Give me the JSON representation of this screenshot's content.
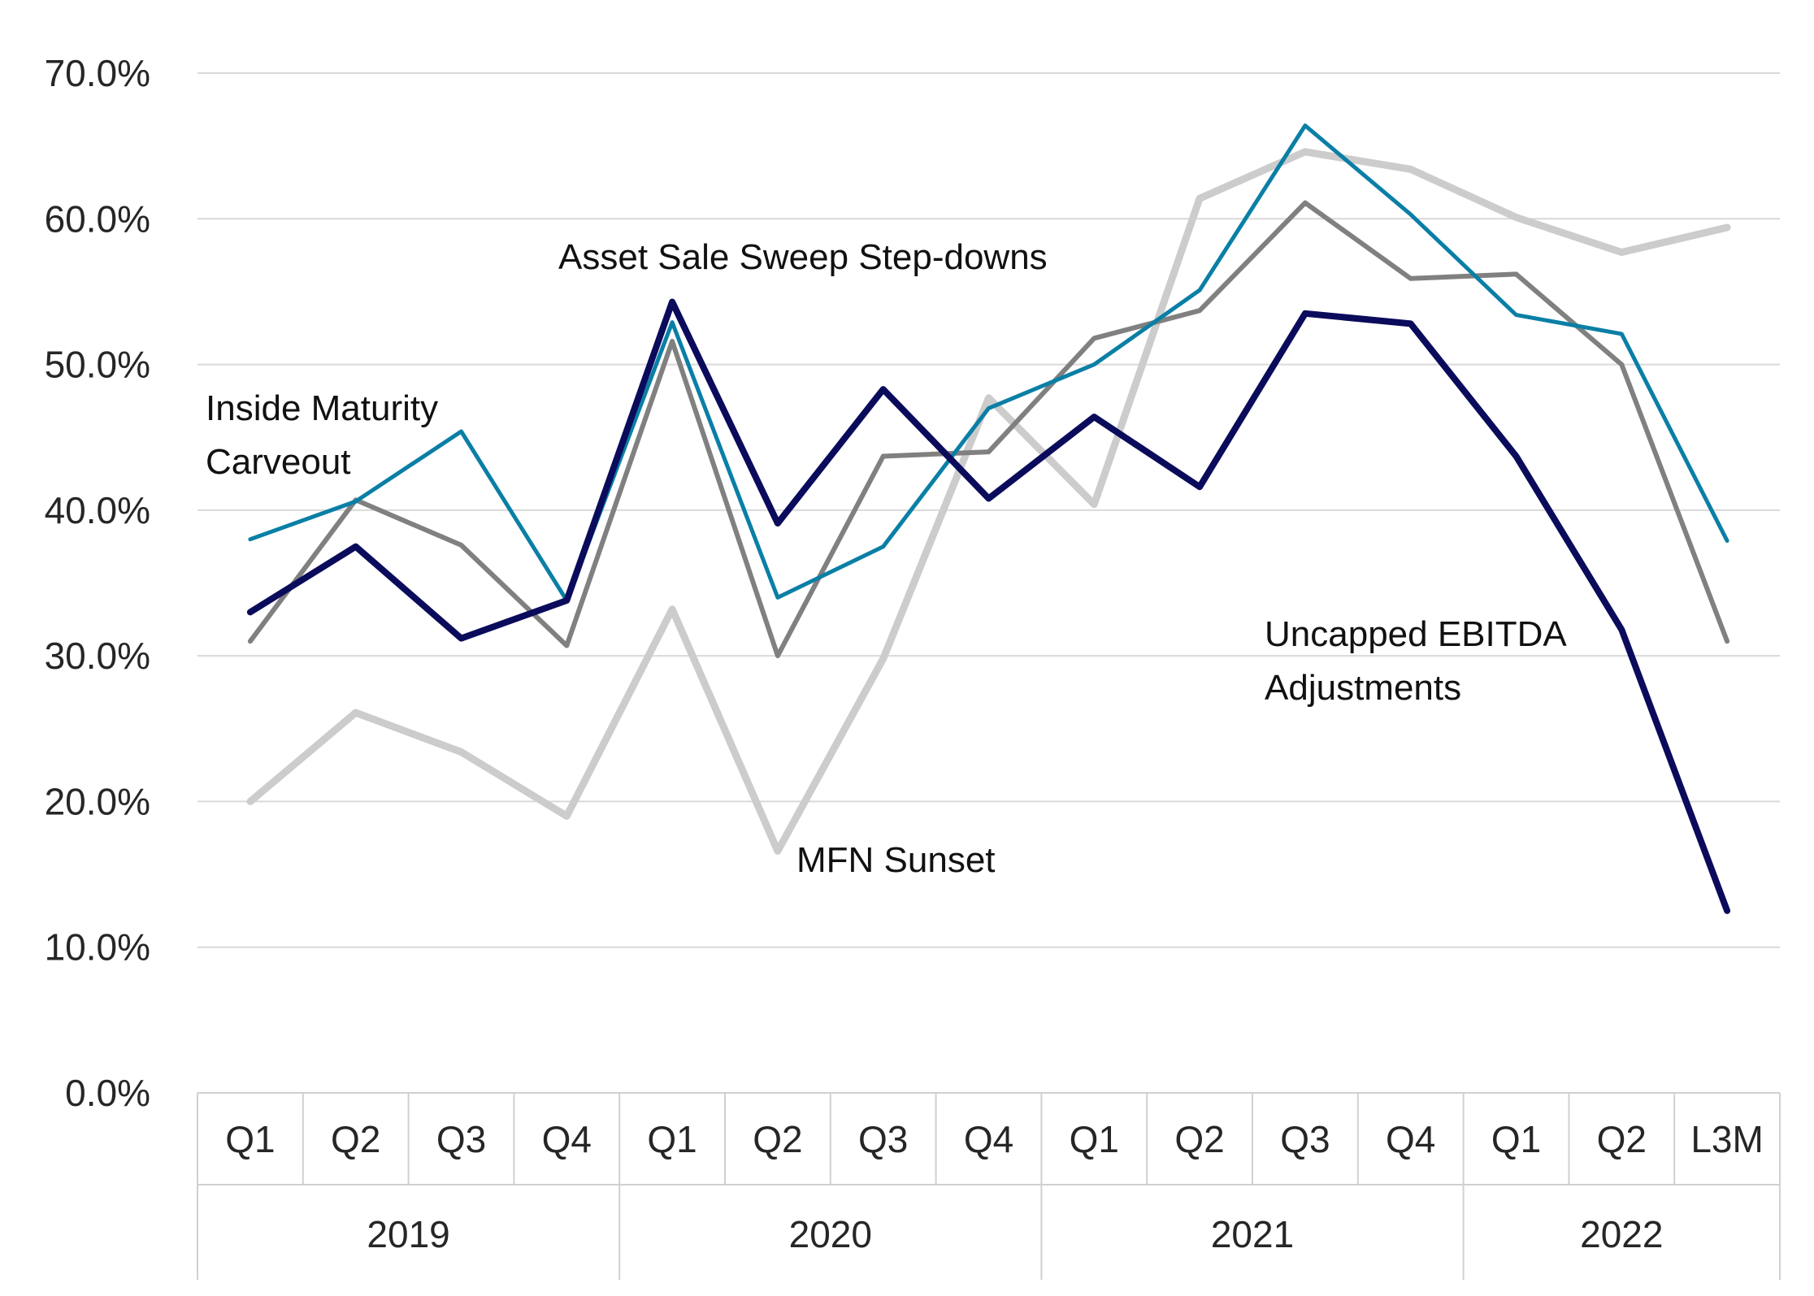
{
  "chart_data": {
    "type": "line",
    "ylim": [
      0,
      70
    ],
    "y_ticks": [
      0,
      10,
      20,
      30,
      40,
      50,
      60,
      70
    ],
    "y_tick_labels": [
      "0.0%",
      "10.0%",
      "20.0%",
      "30.0%",
      "40.0%",
      "50.0%",
      "60.0%",
      "70.0%"
    ],
    "grid": true,
    "categories": [
      "Q1",
      "Q2",
      "Q3",
      "Q4",
      "Q1",
      "Q2",
      "Q3",
      "Q4",
      "Q1",
      "Q2",
      "Q3",
      "Q4",
      "Q1",
      "Q2",
      "L3M"
    ],
    "groups": [
      {
        "label": "2019",
        "count": 4
      },
      {
        "label": "2020",
        "count": 4
      },
      {
        "label": "2021",
        "count": 4
      },
      {
        "label": "2022",
        "count": 3
      }
    ],
    "series": [
      {
        "name": "MFN Sunset",
        "color": "#cccccc",
        "values": [
          20.0,
          26.1,
          23.4,
          19.0,
          33.2,
          16.6,
          29.8,
          47.7,
          40.4,
          61.4,
          64.6,
          63.4,
          60.1,
          57.7,
          59.4
        ]
      },
      {
        "name": "Asset Sale Sweep Step-downs",
        "color": "#808080",
        "values": [
          31.0,
          40.7,
          37.6,
          30.7,
          51.6,
          30.0,
          43.7,
          44.0,
          51.8,
          53.7,
          61.1,
          55.9,
          56.2,
          50.0,
          31.0
        ]
      },
      {
        "name": "Inside Maturity Carveout",
        "color": "#0a7fa6",
        "values": [
          38.0,
          40.6,
          45.4,
          33.8,
          52.9,
          34.0,
          37.5,
          47.0,
          50.0,
          55.1,
          66.4,
          60.3,
          53.4,
          52.1,
          37.9
        ]
      },
      {
        "name": "Uncapped EBITDA Adjustments",
        "color": "#0b0b5c",
        "values": [
          33.0,
          37.5,
          31.2,
          33.8,
          54.3,
          39.1,
          48.3,
          40.8,
          46.4,
          41.6,
          53.5,
          52.8,
          43.7,
          31.8,
          12.5
        ]
      }
    ],
    "annotations": [
      {
        "lines": [
          "Asset Sale Sweep Step-downs"
        ]
      },
      {
        "lines": [
          "Inside Maturity",
          "Carveout"
        ]
      },
      {
        "lines": [
          "MFN Sunset"
        ]
      },
      {
        "lines": [
          "Uncapped EBITDA",
          "Adjustments"
        ]
      }
    ]
  }
}
